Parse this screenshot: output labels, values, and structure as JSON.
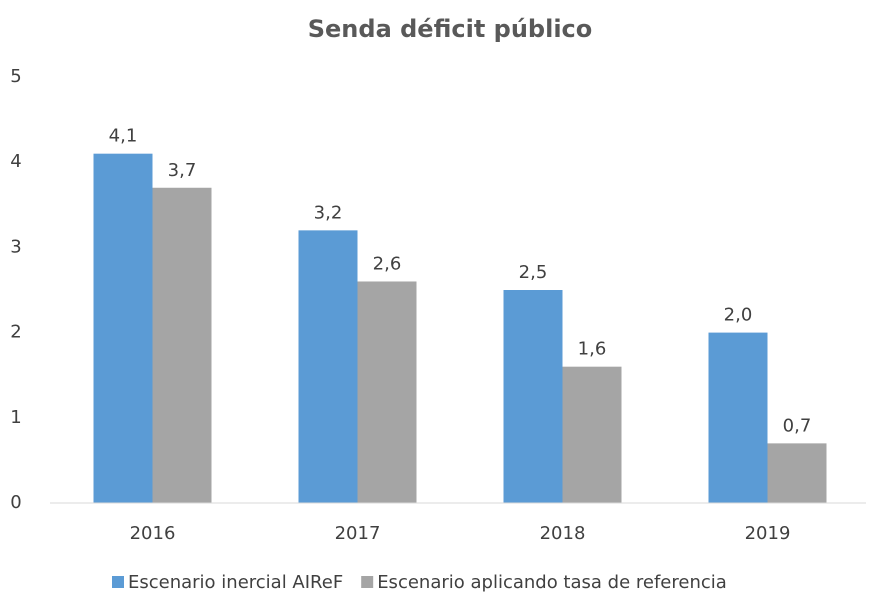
{
  "chart_data": {
    "type": "bar",
    "title": "Senda déficit público",
    "categories": [
      "2016",
      "2017",
      "2018",
      "2019"
    ],
    "series": [
      {
        "name": "Escenario inercial AIReF",
        "color": "#5b9bd5",
        "values": [
          4.1,
          3.2,
          2.5,
          2.0
        ],
        "value_labels": [
          "4,1",
          "3,2",
          "2,5",
          "2,0"
        ]
      },
      {
        "name": "Escenario aplicando tasa de referencia",
        "color": "#a5a5a5",
        "values": [
          3.7,
          2.6,
          1.6,
          0.7
        ],
        "value_labels": [
          "3,7",
          "2,6",
          "1,6",
          "0,7"
        ]
      }
    ],
    "ylim": [
      0,
      5
    ],
    "yticks": [
      0,
      1,
      2,
      3,
      4,
      5
    ],
    "grid": false,
    "legend": "bottom"
  }
}
